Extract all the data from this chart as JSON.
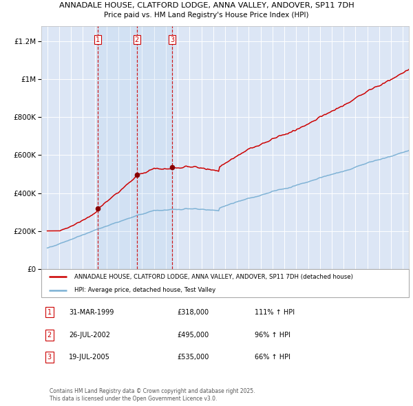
{
  "title": "ANNADALE HOUSE, CLATFORD LODGE, ANNA VALLEY, ANDOVER, SP11 7DH",
  "subtitle": "Price paid vs. HM Land Registry's House Price Index (HPI)",
  "red_line_label": "ANNADALE HOUSE, CLATFORD LODGE, ANNA VALLEY, ANDOVER, SP11 7DH (detached house)",
  "blue_line_label": "HPI: Average price, detached house, Test Valley",
  "sale_points": [
    {
      "label": "1",
      "date": "31-MAR-1999",
      "price": 318000,
      "pct": "111% ↑ HPI"
    },
    {
      "label": "2",
      "date": "26-JUL-2002",
      "price": 495000,
      "pct": "96% ↑ HPI"
    },
    {
      "label": "3",
      "date": "19-JUL-2005",
      "price": 535000,
      "pct": "66% ↑ HPI"
    }
  ],
  "vline_dates": [
    1999.25,
    2002.56,
    2005.54
  ],
  "copyright": "Contains HM Land Registry data © Crown copyright and database right 2025.\nThis data is licensed under the Open Government Licence v3.0.",
  "ylim": [
    0,
    1280000
  ],
  "yticks": [
    0,
    200000,
    400000,
    600000,
    800000,
    1000000,
    1200000
  ],
  "xlim": [
    1994.5,
    2025.5
  ],
  "plot_bg": "#dce6f5",
  "grid_color": "#ffffff",
  "red_color": "#cc0000",
  "blue_color": "#7ab0d4",
  "sale_dot_color": "#880000"
}
